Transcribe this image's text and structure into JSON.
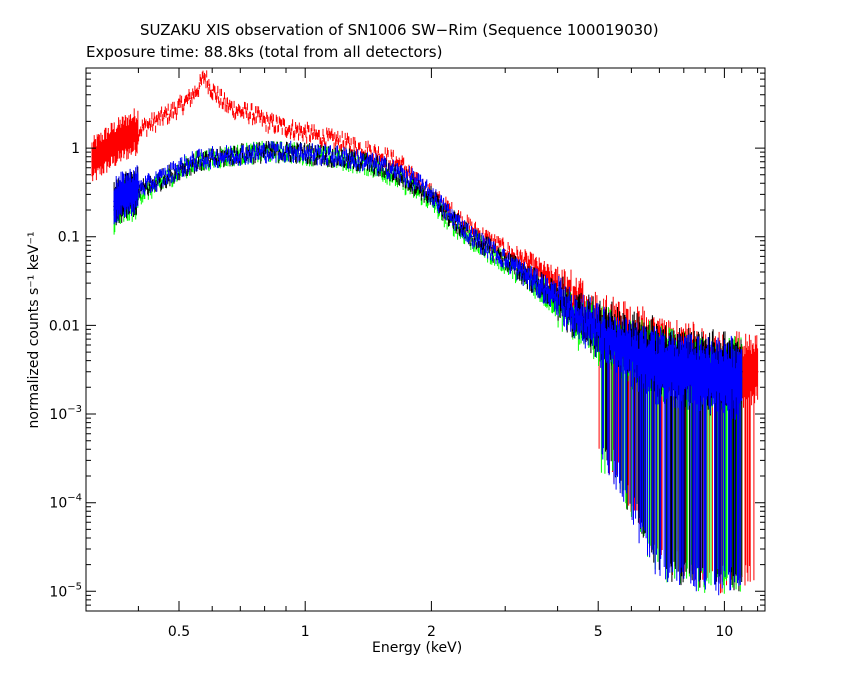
{
  "chart_data": {
    "type": "scatter",
    "title": "SUZAKU XIS observation of SN1006 SW−Rim (Sequence 100019030)",
    "subtitle": "Exposure time: 88.8ks (total from all detectors)",
    "xlabel": "Energy (keV)",
    "ylabel": "normalized counts s⁻¹ keV⁻¹",
    "xscale": "log",
    "yscale": "log",
    "xlim": [
      0.3,
      12.5
    ],
    "ylim": [
      6e-06,
      8
    ],
    "grid": false,
    "legend": "none",
    "x_ticks": [
      {
        "value": 0.5,
        "label": "0.5"
      },
      {
        "value": 1,
        "label": "1"
      },
      {
        "value": 2,
        "label": "2"
      },
      {
        "value": 5,
        "label": "5"
      },
      {
        "value": 10,
        "label": "10"
      }
    ],
    "y_ticks": [
      {
        "value": 1,
        "label": "1",
        "sup": ""
      },
      {
        "value": 0.1,
        "label": "0.1",
        "sup": ""
      },
      {
        "value": 0.01,
        "label": "0.01",
        "sup": ""
      },
      {
        "value": 0.001,
        "label": "10",
        "sup": "−3"
      },
      {
        "value": 0.0001,
        "label": "10",
        "sup": "−4"
      },
      {
        "value": 1e-05,
        "label": "10",
        "sup": "−5"
      }
    ],
    "series": [
      {
        "color": "#ff0000",
        "x": [
          0.31,
          0.33,
          0.35,
          0.38,
          0.41,
          0.44,
          0.47,
          0.5,
          0.53,
          0.56,
          0.575,
          0.6,
          0.65,
          0.7,
          0.75,
          0.8,
          0.9,
          1.0,
          1.1,
          1.2,
          1.35,
          1.5,
          1.7,
          1.85,
          2.0,
          2.2,
          2.5,
          3.0,
          3.5,
          4.0,
          4.5,
          5.0,
          6.0,
          7.0,
          8.0,
          9.0,
          10.0,
          11.0,
          12.0
        ],
        "y": [
          0.7,
          0.9,
          1.1,
          1.4,
          1.7,
          2.0,
          2.4,
          2.9,
          3.6,
          5.0,
          6.5,
          4.5,
          3.0,
          2.6,
          2.4,
          2.0,
          1.7,
          1.5,
          1.3,
          1.2,
          1.0,
          0.85,
          0.65,
          0.4,
          0.3,
          0.2,
          0.12,
          0.07,
          0.045,
          0.028,
          0.018,
          0.012,
          0.007,
          0.005,
          0.004,
          0.0035,
          0.003,
          0.003,
          0.003
        ]
      },
      {
        "color": "#00ff00",
        "x": [
          0.35,
          0.37,
          0.4,
          0.43,
          0.47,
          0.5,
          0.55,
          0.6,
          0.65,
          0.7,
          0.8,
          0.9,
          1.0,
          1.2,
          1.4,
          1.6,
          1.8,
          2.0,
          2.2,
          2.5,
          3.0,
          3.5,
          4.0,
          4.5,
          5.0,
          6.0,
          7.0,
          8.0,
          9.0,
          10.0,
          11.0
        ],
        "y": [
          0.2,
          0.25,
          0.3,
          0.35,
          0.45,
          0.55,
          0.7,
          0.75,
          0.8,
          0.85,
          0.9,
          0.9,
          0.85,
          0.75,
          0.65,
          0.5,
          0.35,
          0.25,
          0.15,
          0.09,
          0.05,
          0.03,
          0.018,
          0.011,
          0.008,
          0.005,
          0.0035,
          0.003,
          0.0025,
          0.0025,
          0.0025
        ]
      },
      {
        "color": "#000000",
        "x": [
          0.35,
          0.37,
          0.4,
          0.43,
          0.47,
          0.5,
          0.55,
          0.6,
          0.65,
          0.7,
          0.8,
          0.9,
          1.0,
          1.2,
          1.4,
          1.6,
          1.8,
          2.0,
          2.2,
          2.5,
          3.0,
          3.5,
          4.0,
          4.5,
          5.0,
          6.0,
          7.0,
          8.0,
          9.0,
          10.0,
          11.0
        ],
        "y": [
          0.22,
          0.28,
          0.33,
          0.38,
          0.48,
          0.58,
          0.7,
          0.75,
          0.8,
          0.85,
          0.9,
          0.9,
          0.88,
          0.78,
          0.68,
          0.55,
          0.4,
          0.28,
          0.17,
          0.1,
          0.055,
          0.032,
          0.02,
          0.012,
          0.009,
          0.006,
          0.004,
          0.0035,
          0.003,
          0.003,
          0.003
        ]
      },
      {
        "color": "#0000ff",
        "x": [
          0.35,
          0.37,
          0.4,
          0.43,
          0.47,
          0.5,
          0.55,
          0.6,
          0.65,
          0.7,
          0.8,
          0.9,
          1.0,
          1.2,
          1.4,
          1.6,
          1.8,
          2.0,
          2.2,
          2.5,
          3.0,
          3.5,
          4.0,
          4.5,
          5.0,
          6.0,
          7.0,
          8.0,
          9.0,
          10.0,
          11.0
        ],
        "y": [
          0.25,
          0.3,
          0.35,
          0.4,
          0.5,
          0.6,
          0.72,
          0.78,
          0.82,
          0.85,
          0.9,
          0.92,
          0.88,
          0.8,
          0.7,
          0.58,
          0.45,
          0.3,
          0.18,
          0.1,
          0.055,
          0.032,
          0.02,
          0.012,
          0.008,
          0.005,
          0.0035,
          0.003,
          0.0028,
          0.0025,
          0.0025
        ]
      }
    ]
  }
}
